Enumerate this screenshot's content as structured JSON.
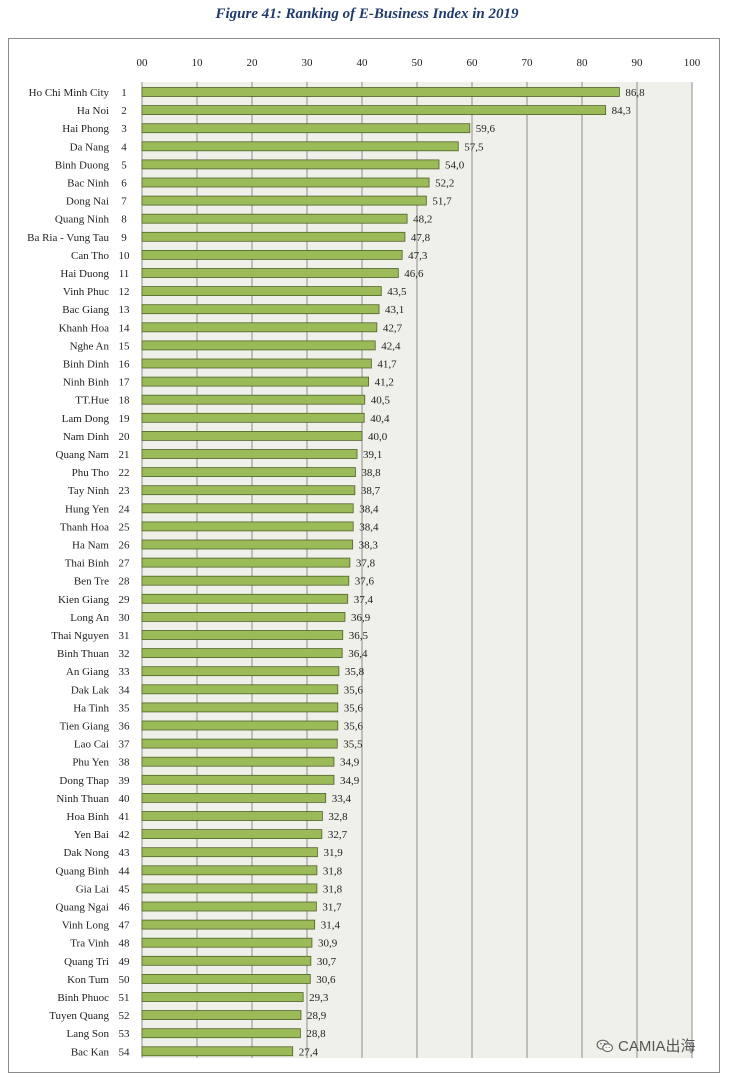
{
  "chart_data": {
    "type": "bar",
    "orientation": "horizontal",
    "title": "Figure 41: Ranking of E-Business Index in 2019",
    "xlim": [
      0,
      100
    ],
    "x_ticks": [
      "00",
      "10",
      "20",
      "30",
      "40",
      "50",
      "60",
      "70",
      "80",
      "90",
      "100"
    ],
    "grid": true,
    "colors": {
      "bar": "#9bbb59",
      "bar_border": "#4f6228",
      "plot_bg": "#f0f0ea",
      "grid": "#8c8c8c",
      "title": "#1f3a6b"
    },
    "rows": [
      {
        "province": "Ho Chi Minh City",
        "rank": "1",
        "value": 86.8,
        "label": "86,8"
      },
      {
        "province": "Ha Noi",
        "rank": "2",
        "value": 84.3,
        "label": "84,3"
      },
      {
        "province": "Hai Phong",
        "rank": "3",
        "value": 59.6,
        "label": "59,6"
      },
      {
        "province": "Da Nang",
        "rank": "4",
        "value": 57.5,
        "label": "57,5"
      },
      {
        "province": "Binh Duong",
        "rank": "5",
        "value": 54.0,
        "label": "54,0"
      },
      {
        "province": "Bac Ninh",
        "rank": "6",
        "value": 52.2,
        "label": "52,2"
      },
      {
        "province": "Dong Nai",
        "rank": "7",
        "value": 51.7,
        "label": "51,7"
      },
      {
        "province": "Quang Ninh",
        "rank": "8",
        "value": 48.2,
        "label": "48,2"
      },
      {
        "province": "Ba Ria - Vung Tau",
        "rank": "9",
        "value": 47.8,
        "label": "47,8"
      },
      {
        "province": "Can Tho",
        "rank": "10",
        "value": 47.3,
        "label": "47,3"
      },
      {
        "province": "Hai Duong",
        "rank": "11",
        "value": 46.6,
        "label": "46,6"
      },
      {
        "province": "Vinh Phuc",
        "rank": "12",
        "value": 43.5,
        "label": "43,5"
      },
      {
        "province": "Bac Giang",
        "rank": "13",
        "value": 43.1,
        "label": "43,1"
      },
      {
        "province": "Khanh Hoa",
        "rank": "14",
        "value": 42.7,
        "label": "42,7"
      },
      {
        "province": "Nghe An",
        "rank": "15",
        "value": 42.4,
        "label": "42,4"
      },
      {
        "province": "Binh Dinh",
        "rank": "16",
        "value": 41.7,
        "label": "41,7"
      },
      {
        "province": "Ninh Binh",
        "rank": "17",
        "value": 41.2,
        "label": "41,2"
      },
      {
        "province": "TT.Hue",
        "rank": "18",
        "value": 40.5,
        "label": "40,5"
      },
      {
        "province": "Lam Dong",
        "rank": "19",
        "value": 40.4,
        "label": "40,4"
      },
      {
        "province": "Nam Dinh",
        "rank": "20",
        "value": 40.0,
        "label": "40,0"
      },
      {
        "province": "Quang Nam",
        "rank": "21",
        "value": 39.1,
        "label": "39,1"
      },
      {
        "province": "Phu Tho",
        "rank": "22",
        "value": 38.8,
        "label": "38,8"
      },
      {
        "province": "Tay Ninh",
        "rank": "23",
        "value": 38.7,
        "label": "38,7"
      },
      {
        "province": "Hung Yen",
        "rank": "24",
        "value": 38.4,
        "label": "38,4"
      },
      {
        "province": "Thanh Hoa",
        "rank": "25",
        "value": 38.4,
        "label": "38,4"
      },
      {
        "province": "Ha Nam",
        "rank": "26",
        "value": 38.3,
        "label": "38,3"
      },
      {
        "province": "Thai Binh",
        "rank": "27",
        "value": 37.8,
        "label": "37,8"
      },
      {
        "province": "Ben Tre",
        "rank": "28",
        "value": 37.6,
        "label": "37,6"
      },
      {
        "province": "Kien Giang",
        "rank": "29",
        "value": 37.4,
        "label": "37,4"
      },
      {
        "province": "Long An",
        "rank": "30",
        "value": 36.9,
        "label": "36,9"
      },
      {
        "province": "Thai Nguyen",
        "rank": "31",
        "value": 36.5,
        "label": "36,5"
      },
      {
        "province": "Binh Thuan",
        "rank": "32",
        "value": 36.4,
        "label": "36,4"
      },
      {
        "province": "An Giang",
        "rank": "33",
        "value": 35.8,
        "label": "35,8"
      },
      {
        "province": "Dak Lak",
        "rank": "34",
        "value": 35.6,
        "label": "35,6"
      },
      {
        "province": "Ha Tinh",
        "rank": "35",
        "value": 35.6,
        "label": "35,6"
      },
      {
        "province": "Tien Giang",
        "rank": "36",
        "value": 35.6,
        "label": "35,6"
      },
      {
        "province": "Lao Cai",
        "rank": "37",
        "value": 35.5,
        "label": "35,5"
      },
      {
        "province": "Phu Yen",
        "rank": "38",
        "value": 34.9,
        "label": "34,9"
      },
      {
        "province": "Dong Thap",
        "rank": "39",
        "value": 34.9,
        "label": "34,9"
      },
      {
        "province": "Ninh Thuan",
        "rank": "40",
        "value": 33.4,
        "label": "33,4"
      },
      {
        "province": "Hoa Binh",
        "rank": "41",
        "value": 32.8,
        "label": "32,8"
      },
      {
        "province": "Yen Bai",
        "rank": "42",
        "value": 32.7,
        "label": "32,7"
      },
      {
        "province": "Dak Nong",
        "rank": "43",
        "value": 31.9,
        "label": "31,9"
      },
      {
        "province": "Quang Binh",
        "rank": "44",
        "value": 31.8,
        "label": "31,8"
      },
      {
        "province": "Gia Lai",
        "rank": "45",
        "value": 31.8,
        "label": "31,8"
      },
      {
        "province": "Quang Ngai",
        "rank": "46",
        "value": 31.7,
        "label": "31,7"
      },
      {
        "province": "Vinh Long",
        "rank": "47",
        "value": 31.4,
        "label": "31,4"
      },
      {
        "province": "Tra Vinh",
        "rank": "48",
        "value": 30.9,
        "label": "30,9"
      },
      {
        "province": "Quang Tri",
        "rank": "49",
        "value": 30.7,
        "label": "30,7"
      },
      {
        "province": "Kon Tum",
        "rank": "50",
        "value": 30.6,
        "label": "30,6"
      },
      {
        "province": "Binh Phuoc",
        "rank": "51",
        "value": 29.3,
        "label": "29,3"
      },
      {
        "province": "Tuyen Quang",
        "rank": "52",
        "value": 28.9,
        "label": "28,9"
      },
      {
        "province": "Lang Son",
        "rank": "53",
        "value": 28.8,
        "label": "28,8"
      },
      {
        "province": "Bac Kan",
        "rank": "54",
        "value": 27.4,
        "label": "27,4"
      }
    ]
  },
  "watermark": {
    "text": "CAMIA出海",
    "icon": "wechat-icon"
  }
}
